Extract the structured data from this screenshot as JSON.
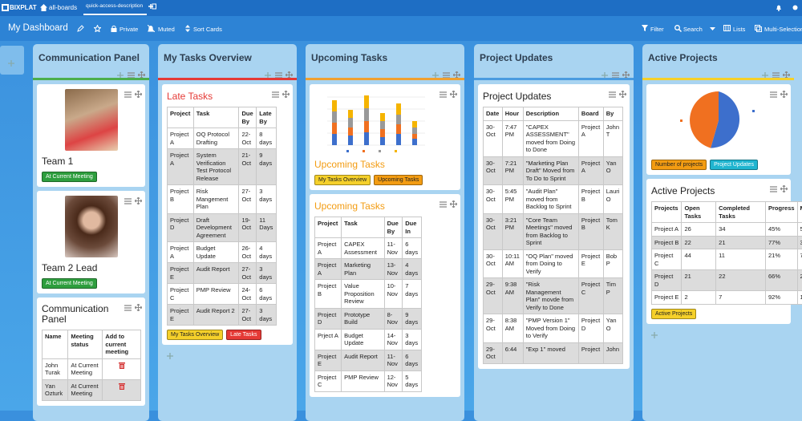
{
  "topbar": {
    "logo": "BIXPLAT",
    "board": "all-boards",
    "tab": "quick-access-description"
  },
  "header": {
    "title": "My Dashboard",
    "actions": [
      "Private",
      "Muted",
      "Sort Cards"
    ],
    "tools": [
      "Filter",
      "Search",
      "Lists",
      "Multi-Selection"
    ]
  },
  "lists": [
    {
      "title": "Communication Panel",
      "color": "#4cae4c",
      "cards": [
        {
          "title": "Team 1",
          "tags": [
            {
              "text": "At Current Meeting",
              "color": "#2e9e3e",
              "text_color": "#ffffff"
            }
          ]
        },
        {
          "title": "Team 2 Lead",
          "tags": [
            {
              "text": "At Current Meeting",
              "color": "#2e9e3e",
              "text_color": "#ffffff"
            }
          ]
        },
        {
          "title": "Communication Panel",
          "table": {
            "columns": [
              "Name",
              "Meeting status",
              "Add to current meeting"
            ],
            "rows": [
              [
                "John Turak",
                "At Current Meeting"
              ],
              [
                "Yan Ozturk",
                "At Current Meeting"
              ]
            ]
          }
        }
      ]
    },
    {
      "title": "My Tasks Overview",
      "color": "#e53935",
      "cards": [
        {
          "title": "Late Tasks",
          "table": {
            "columns": [
              "Project",
              "Task",
              "Due By",
              "Late By"
            ],
            "rows": [
              [
                "Project A",
                "OQ Protocol Drafting",
                "22-Oct",
                "8 days"
              ],
              [
                "Project A",
                "System Verification Test Protocol Release",
                "21-Oct",
                "9 days"
              ],
              [
                "Project B",
                "Risk Mangement Plan",
                "27-Oct",
                "3 days"
              ],
              [
                "Project D",
                "Draft Development Agreement",
                "19-Oct",
                "11 Days"
              ],
              [
                "Project A",
                "Budget Update",
                "26-Oct",
                "4 days"
              ],
              [
                "Project E",
                "Audit Report",
                "27-Oct",
                "3 days"
              ],
              [
                "Project C",
                "PMP Review",
                "24-Oct",
                "6 days"
              ],
              [
                "Project E",
                "Audit Report 2",
                "27-Oct",
                "3 days"
              ]
            ]
          },
          "tags": [
            {
              "text": "My Tasks Overview",
              "color": "#f5d02a",
              "text_color": "#222222"
            },
            {
              "text": "Late Tasks",
              "color": "#e53935",
              "text_color": "#ffffff"
            }
          ]
        }
      ]
    },
    {
      "title": "Upcoming Tasks",
      "color": "#f0a030",
      "cards": [
        {
          "title": "Upcoming Tasks",
          "tags": [
            {
              "text": "My Tasks Overview",
              "color": "#f5d02a",
              "text_color": "#222222"
            },
            {
              "text": "Upcoming Tasks",
              "color": "#f39c12",
              "text_color": "#222222"
            }
          ]
        },
        {
          "title": "Upcoming Tasks",
          "table": {
            "columns": [
              "Project",
              "Task",
              "Due By",
              "Due In"
            ],
            "rows": [
              [
                "Project A",
                "CAPEX Assessment",
                "11-Nov",
                "6 days"
              ],
              [
                "Project A",
                "Marketing Plan",
                "13-Nov",
                "4 days"
              ],
              [
                "Project B",
                "Value Proposition Review",
                "10-Nov",
                "7 days"
              ],
              [
                "Project D",
                "Prototype Build",
                "8-Nov",
                "9 days"
              ],
              [
                "Prject A",
                "Budget Update",
                "14-Nov",
                "3 days"
              ],
              [
                "Project E",
                "Audit Report",
                "11-Nov",
                "6 days"
              ],
              [
                "Project C",
                "PMP Review",
                "12-Nov",
                "5 days"
              ]
            ]
          }
        }
      ]
    },
    {
      "title": "Project Updates",
      "color": "#4a9be0",
      "cards": [
        {
          "title": "Project Updates",
          "table": {
            "columns": [
              "Date",
              "Hour",
              "Description",
              "Board",
              "By"
            ],
            "rows": [
              [
                "30-Oct",
                "7:47 PM",
                "\"CAPEX ASSESSMENT\" moved from Doing to Done",
                "Project A",
                "John T"
              ],
              [
                "30-Oct",
                "7:21 PM",
                "\"Marketing Plan Draft\" Moved from To Do to Sprint",
                "Project A",
                "Yan O"
              ],
              [
                "30-Oct",
                "5:45 PM",
                "\"Audit Plan\" moved from Backlog to Sprint",
                "Project B",
                "Lauri O"
              ],
              [
                "30-Oct",
                "3:21 PM",
                "\"Core Team Meetings\" moved from Backlog to Sprint",
                "Project B",
                "Tom K"
              ],
              [
                "30-Oct",
                "10:11 AM",
                "\"OQ Plan\" moved from Doing to Verify",
                "Project E",
                "Bob P"
              ],
              [
                "29-Oct",
                "9:38 AM",
                "\"Risk Management Plan\" movde from Verify to Done",
                "Project C",
                "Tim P"
              ],
              [
                "29-Oct",
                "8:38 AM",
                "\"PMP Version 1\" Moved from Doing to Verify",
                "Project D",
                "Yan O"
              ],
              [
                "29-Oct",
                "6:44",
                "\"Exp 1\" moved",
                "Project",
                "John"
              ]
            ]
          }
        }
      ]
    },
    {
      "title": "Active Projects",
      "color": "#f5d02a",
      "cards": [
        {
          "tags": [
            {
              "text": "Number of projects",
              "color": "#f39c12",
              "text_color": "#222222"
            },
            {
              "text": "Project Updates",
              "color": "#1fb5d0",
              "text_color": "#ffffff"
            }
          ]
        },
        {
          "title": "Active Projects",
          "table": {
            "columns": [
              "Projects",
              "Open Tasks",
              "Completed Tasks",
              "Progress",
              "Me"
            ],
            "rows": [
              [
                "Project A",
                "26",
                "34",
                "45%",
                "5"
              ],
              [
                "Project B",
                "22",
                "21",
                "77%",
                "3"
              ],
              [
                "Project C",
                "44",
                "11",
                "21%",
                "7"
              ],
              [
                "Project D",
                "21",
                "22",
                "66%",
                "2"
              ],
              [
                "Project E",
                "2",
                "7",
                "92%",
                "1"
              ]
            ]
          },
          "tags": [
            {
              "text": "Active Projects",
              "color": "#f5d02a",
              "text_color": "#222222"
            }
          ]
        }
      ]
    }
  ]
}
